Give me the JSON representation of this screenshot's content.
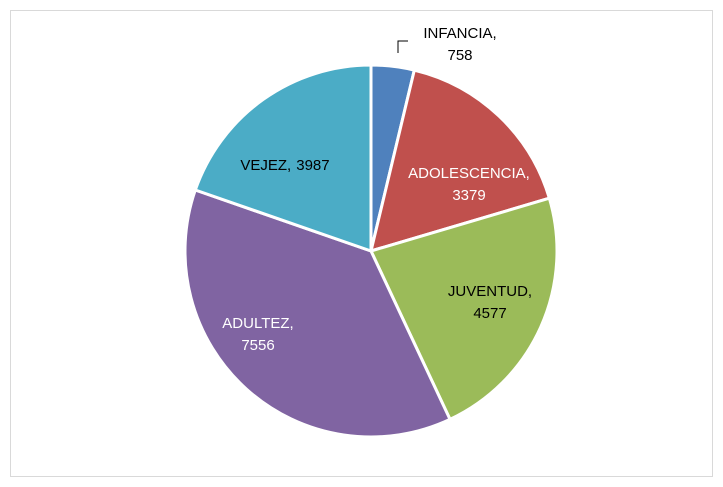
{
  "chart_data": {
    "type": "pie",
    "categories": [
      "INFANCIA,",
      "ADOLESCENCIA,",
      "JUVENTUD,",
      "ADULTEZ,",
      "VEJEZ,"
    ],
    "values": [
      758,
      3379,
      4577,
      7556,
      3987
    ],
    "colors": [
      "#4f81bd",
      "#c0504d",
      "#9bbb59",
      "#8064a2",
      "#4bacc6"
    ]
  }
}
